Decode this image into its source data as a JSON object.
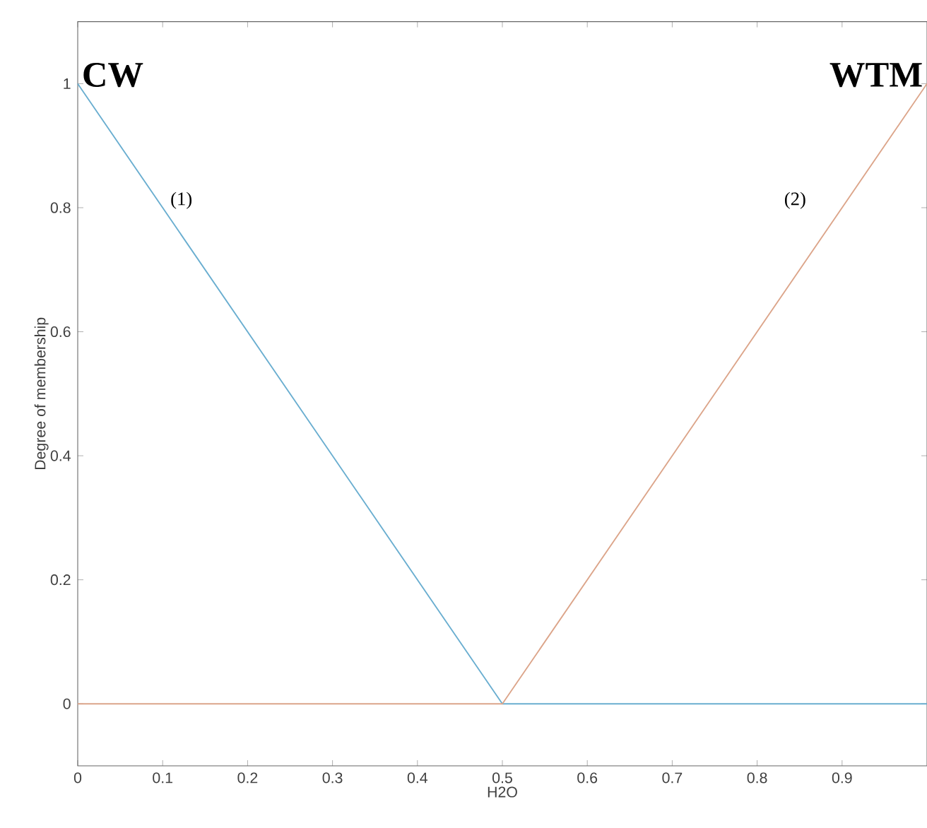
{
  "chart_data": {
    "type": "line",
    "xlabel": "H2O",
    "ylabel": "Degree of membership",
    "xlim": [
      0,
      1
    ],
    "ylim": [
      -0.1,
      1.1
    ],
    "xticks": [
      0,
      0.1,
      0.2,
      0.3,
      0.4,
      0.5,
      0.6,
      0.7,
      0.8,
      0.9
    ],
    "yticks": [
      0,
      0.2,
      0.4,
      0.6,
      0.8,
      1
    ],
    "series": [
      {
        "name": "CW",
        "color": "#6aaed0",
        "x": [
          0,
          0.5,
          1
        ],
        "values": [
          1,
          0,
          0
        ]
      },
      {
        "name": "WTM",
        "color": "#dca58a",
        "x": [
          0,
          0.5,
          1
        ],
        "values": [
          0,
          0,
          1
        ]
      }
    ],
    "annotations": [
      "(1)",
      "(2)"
    ],
    "grid": false,
    "legend": false,
    "marker": "none",
    "line_style": "solid"
  }
}
